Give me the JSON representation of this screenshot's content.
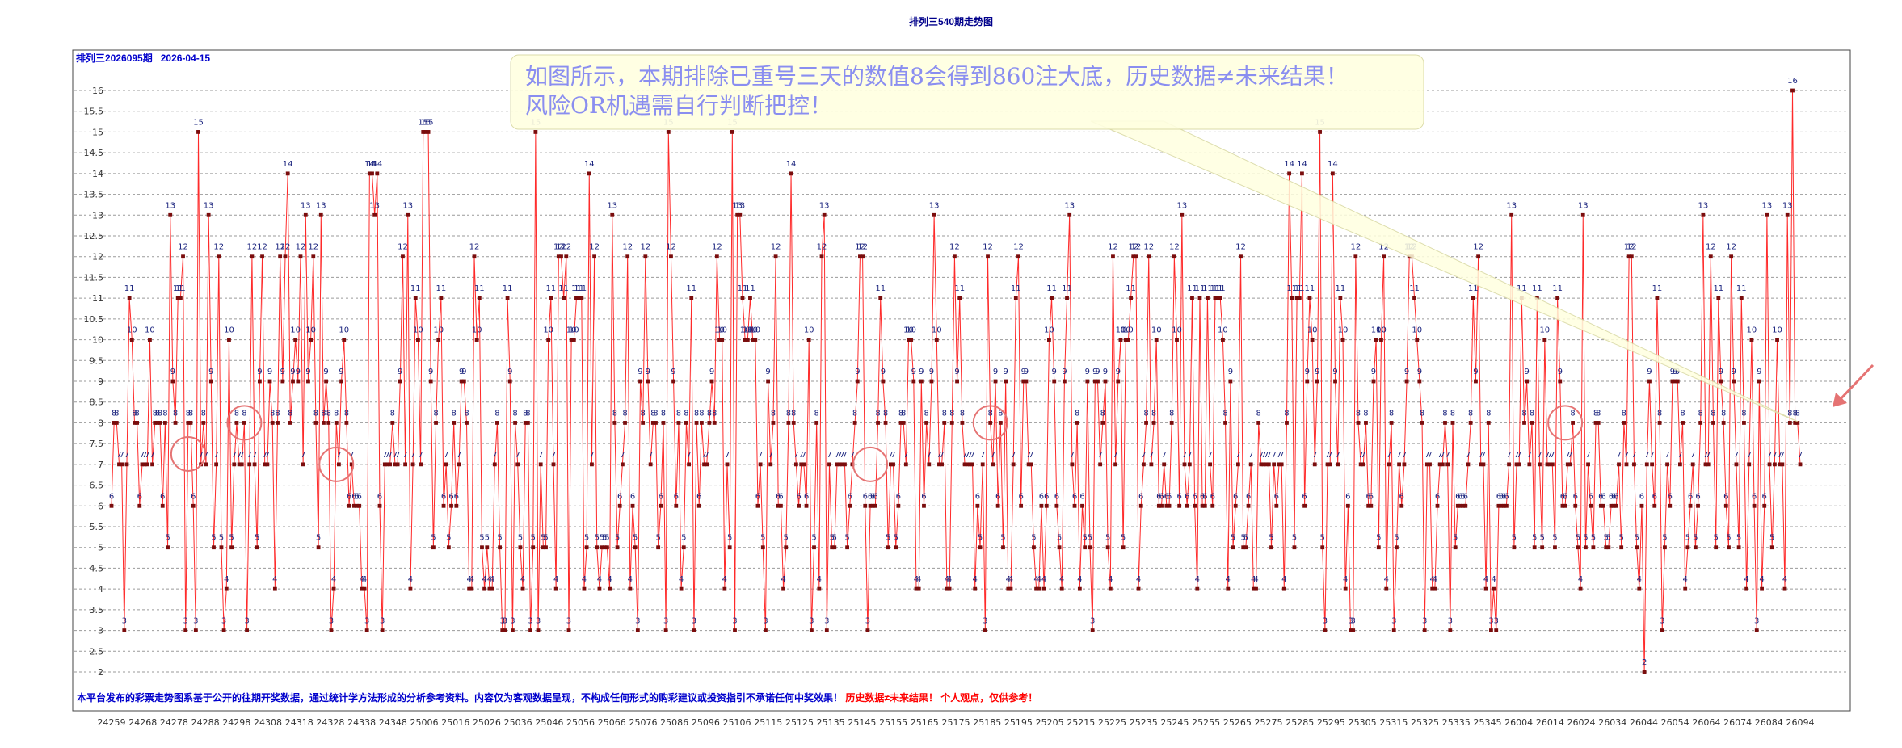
{
  "page": {
    "title": "排列三540期走势图",
    "subtitle": "排列三2026095期   2026-04-15",
    "callout_line1": "如图所示，本期排除已重号三天的数值8会得到860注大底，历史数据≠未来结果！",
    "callout_line2": "风险OR机遇需自行判断把控！",
    "footer_blue": "本平台发布的彩票走势图系基于公开的往期开奖数据，通过统计学方法形成的分析参考资料。内容仅为客观数据呈现，不构成任何形式的购彩建议或投资指引不承诺任何中奖效果！",
    "footer_red": "历史数据≠未来结果！ 个人观点，仅供参考！"
  },
  "colors": {
    "line": "#ff2a2a",
    "marker": "#7a0d0d",
    "label": "#1a237e",
    "title": "#00008b",
    "footer_blue": "#0000cc",
    "footer_red": "#ff0000",
    "callout_fill": "#ffffe0",
    "circle": "#e57373"
  },
  "chart_data": {
    "type": "line",
    "ylim": [
      2,
      16
    ],
    "yticks": [
      2,
      2.5,
      3,
      3.5,
      4,
      4.5,
      5,
      5.5,
      6,
      6.5,
      7,
      7.5,
      8,
      8.5,
      9,
      9.5,
      10,
      10.5,
      11,
      11.5,
      12,
      12.5,
      13,
      13.5,
      14,
      14.5,
      15,
      15.5,
      16
    ],
    "grid": true,
    "legend": "none",
    "xtick_labels": [
      "24259",
      "24268",
      "24278",
      "24288",
      "24298",
      "24308",
      "24318",
      "24328",
      "24338",
      "24348",
      "25006",
      "25016",
      "25026",
      "25036",
      "25046",
      "25056",
      "25066",
      "25076",
      "25086",
      "25096",
      "25106",
      "25115",
      "25125",
      "25135",
      "25145",
      "25155",
      "25165",
      "25175",
      "25185",
      "25195",
      "25205",
      "25215",
      "25225",
      "25235",
      "25245",
      "25255",
      "25265",
      "25275",
      "25285",
      "25295",
      "25305",
      "25315",
      "25325",
      "25335",
      "25345",
      "26004",
      "26014",
      "26024",
      "26034",
      "26044",
      "26054",
      "26064",
      "26074",
      "26084",
      "26094"
    ],
    "series": [
      {
        "values": [
          6,
          8,
          8,
          7,
          7,
          3,
          7,
          11,
          10,
          8,
          8,
          6,
          7,
          7,
          7,
          10,
          7,
          8,
          8,
          8,
          6,
          8,
          5,
          13,
          9,
          8,
          11,
          11,
          12,
          3,
          8,
          8,
          6,
          3,
          15,
          7,
          8,
          7,
          13,
          9,
          5,
          7,
          12,
          5,
          3,
          4,
          10,
          5,
          7,
          8,
          7,
          7,
          8,
          3,
          7,
          12,
          7,
          5,
          9,
          12,
          7,
          7,
          9,
          8,
          4,
          8,
          12,
          9,
          12,
          14,
          8,
          9,
          10,
          9,
          12,
          7,
          13,
          9,
          10,
          12,
          8,
          5,
          13,
          8,
          9,
          8,
          3,
          4,
          8,
          7,
          9,
          10,
          8,
          6,
          7,
          6,
          6,
          6,
          4,
          4,
          3,
          14,
          14,
          13,
          14,
          6,
          3,
          7,
          7,
          7,
          8,
          7,
          7,
          9,
          12,
          7,
          13,
          4,
          7,
          11,
          10,
          7,
          15,
          15,
          15,
          9,
          5,
          8,
          10,
          11,
          6,
          7,
          5,
          6,
          8,
          6,
          7,
          9,
          9,
          8,
          4,
          4,
          12,
          10,
          11,
          5,
          4,
          5,
          4,
          4,
          7,
          8,
          5,
          3,
          3,
          11,
          9,
          3,
          8,
          7,
          5,
          4,
          8,
          8,
          3,
          5,
          15,
          3,
          7,
          5,
          5,
          10,
          11,
          7,
          4,
          12,
          12,
          11,
          12,
          3,
          10,
          10,
          11,
          11,
          11,
          4,
          5,
          14,
          7,
          12,
          5,
          4,
          5,
          5,
          5,
          4,
          13,
          8,
          5,
          6,
          7,
          8,
          12,
          4,
          6,
          5,
          3,
          9,
          8,
          12,
          9,
          7,
          8,
          8,
          5,
          6,
          8,
          3,
          15,
          12,
          9,
          6,
          8,
          4,
          5,
          8,
          7,
          11,
          3,
          8,
          6,
          8,
          7,
          7,
          8,
          9,
          8,
          12,
          10,
          10,
          4,
          7,
          5,
          15,
          3,
          13,
          13,
          11,
          10,
          10,
          11,
          10,
          10,
          6,
          7,
          5,
          3,
          9,
          7,
          8,
          12,
          6,
          6,
          4,
          5,
          8,
          14,
          8,
          7,
          6,
          7,
          7,
          6,
          10,
          3,
          5,
          8,
          4,
          12,
          13,
          3,
          7,
          5,
          5,
          7,
          7,
          7,
          7,
          5,
          6,
          7,
          8,
          9,
          12,
          12,
          6,
          3,
          6,
          6,
          6,
          8,
          11,
          9,
          8,
          5,
          7,
          7,
          5,
          6,
          8,
          8,
          7,
          10,
          10,
          9,
          4,
          4,
          9,
          6,
          8,
          7,
          9,
          13,
          10,
          7,
          7,
          8,
          4,
          4,
          8,
          12,
          9,
          11,
          8,
          7,
          7,
          7,
          7,
          4,
          6,
          5,
          7,
          3,
          12,
          8,
          7,
          9,
          6,
          8,
          5,
          9,
          4,
          4,
          7,
          11,
          12,
          6,
          9,
          9,
          7,
          7,
          5,
          4,
          4,
          6,
          4,
          6,
          10,
          11,
          9,
          6,
          5,
          4,
          9,
          11,
          13,
          7,
          6,
          8,
          4,
          6,
          5,
          9,
          5,
          3,
          9,
          9,
          7,
          8,
          9,
          5,
          4,
          12,
          7,
          9,
          10,
          5,
          10,
          10,
          11,
          12,
          12,
          4,
          6,
          7,
          8,
          12,
          7,
          8,
          10,
          6,
          6,
          7,
          6,
          6,
          8,
          12,
          10,
          6,
          13,
          7,
          6,
          7,
          11,
          6,
          4,
          11,
          6,
          6,
          11,
          7,
          6,
          11,
          11,
          11,
          10,
          8,
          4,
          9,
          5,
          6,
          7,
          12,
          5,
          5,
          6,
          7,
          4,
          4,
          8,
          7,
          7,
          7,
          7,
          5,
          7,
          6,
          7,
          7,
          4,
          8,
          14,
          11,
          5,
          11,
          11,
          14,
          6,
          9,
          11,
          10,
          7,
          9,
          15,
          5,
          3,
          7,
          7,
          14,
          9,
          7,
          11,
          10,
          4,
          6,
          3,
          3,
          12,
          8,
          7,
          7,
          8,
          6,
          6,
          9,
          10,
          5,
          10,
          12,
          4,
          7,
          8,
          3,
          5,
          7,
          6,
          7,
          9,
          12,
          12,
          11,
          10,
          9,
          8,
          3,
          7,
          7,
          4,
          4,
          6,
          7,
          7,
          8,
          7,
          3,
          8,
          5,
          6,
          6,
          6,
          6,
          7,
          8,
          11,
          9,
          12,
          7,
          7,
          4,
          8,
          3,
          4,
          3,
          6,
          6,
          6,
          6,
          7,
          13,
          5,
          7,
          7,
          11,
          8,
          9,
          7,
          8,
          5,
          11,
          7,
          5,
          10,
          7,
          7,
          7,
          5,
          11,
          9,
          6,
          6,
          7,
          7,
          8,
          6,
          5,
          4,
          13,
          5,
          7,
          6,
          5,
          8,
          8,
          6,
          6,
          5,
          5,
          6,
          6,
          6,
          7,
          5,
          8,
          7,
          12,
          12,
          7,
          5,
          4,
          6,
          2,
          7,
          9,
          7,
          6,
          11,
          8,
          3,
          5,
          7,
          6,
          9,
          9,
          9,
          7,
          8,
          4,
          5,
          6,
          7,
          5,
          6,
          8,
          13,
          7,
          7,
          12,
          8,
          5,
          11,
          9,
          8,
          6,
          5,
          12,
          9,
          7,
          5,
          11,
          8,
          4,
          7,
          10,
          6,
          3,
          9,
          4,
          6,
          13,
          7,
          5,
          7,
          10,
          7,
          7,
          4,
          13,
          8,
          16,
          8,
          8,
          7
        ]
      }
    ]
  }
}
